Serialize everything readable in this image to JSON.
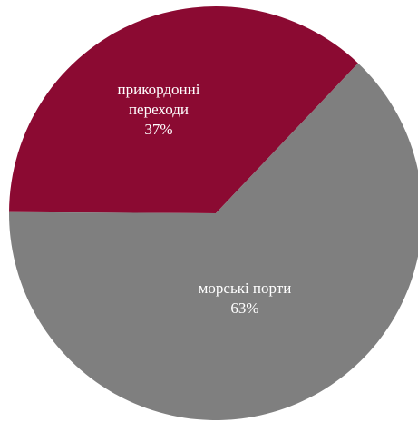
{
  "chart_data": {
    "type": "pie",
    "title": "",
    "slices": [
      {
        "label_lines": [
          "прикордонні",
          "переходи"
        ],
        "value_label": "37%",
        "value": 37,
        "color": "#8b0a32"
      },
      {
        "label_lines": [
          "морські порти"
        ],
        "value_label": "63%",
        "value": 63,
        "color": "#7f7f7f"
      }
    ]
  }
}
